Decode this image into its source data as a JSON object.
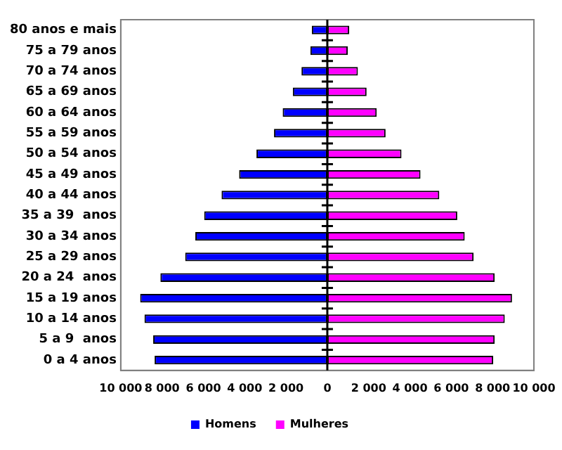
{
  "chart_data": {
    "type": "bar",
    "orientation": "horizontal",
    "stacked": true,
    "categories": [
      "80 anos e mais",
      "75 a 79 anos",
      "70 a 74 anos",
      "65 a 69 anos",
      "60 a 64 anos",
      "55 a 59 anos",
      "50 a 54 anos",
      "45 a 49 anos",
      "40 a 44 anos",
      "35 a 39  anos",
      "30 a 34 anos",
      "25 a 29 anos",
      "20 a 24  anos",
      "15 a 19 anos",
      "10 a 14 anos",
      "5 a 9  anos",
      "0 a 4 anos"
    ],
    "series": [
      {
        "name": "Homens",
        "color": "#0000ff",
        "values": [
          -750,
          -820,
          -1250,
          -1670,
          -2160,
          -2580,
          -3430,
          -4270,
          -5120,
          -5960,
          -6390,
          -6880,
          -8080,
          -9060,
          -8850,
          -8430,
          -8360
        ]
      },
      {
        "name": "Mulheres",
        "color": "#ff00ff",
        "values": [
          1060,
          990,
          1480,
          1900,
          2390,
          2820,
          3590,
          4510,
          5420,
          6290,
          6650,
          7080,
          8100,
          8940,
          8590,
          8100,
          8030
        ]
      }
    ],
    "xlim": [
      -10000,
      10000
    ],
    "xticks": [
      {
        "value": -10000,
        "label": "10 000"
      },
      {
        "value": -8000,
        "label": "8 000"
      },
      {
        "value": -6000,
        "label": "6 000"
      },
      {
        "value": -4000,
        "label": "4 000"
      },
      {
        "value": -2000,
        "label": "2 000"
      },
      0,
      {
        "value": 2000,
        "label": "2 000"
      },
      {
        "value": 4000,
        "label": "4 000"
      },
      {
        "value": 6000,
        "label": "6 000"
      },
      {
        "value": 8000,
        "label": "8 000"
      },
      {
        "value": 10000,
        "label": "10 000"
      }
    ],
    "legend": "bottom"
  }
}
